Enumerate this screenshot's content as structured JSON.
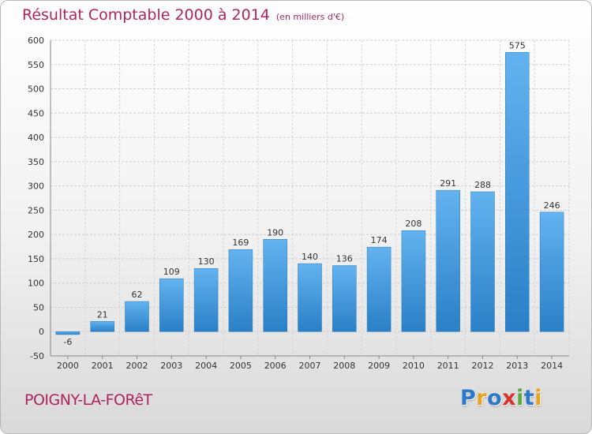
{
  "chart_data": {
    "type": "bar",
    "title": "Résultat Comptable 2000 à 2014",
    "subtitle": "(en milliers d'€)",
    "categories": [
      "2000",
      "2001",
      "2002",
      "2003",
      "2004",
      "2005",
      "2006",
      "2007",
      "2008",
      "2009",
      "2010",
      "2011",
      "2012",
      "2013",
      "2014"
    ],
    "values": [
      -6,
      21,
      62,
      109,
      130,
      169,
      190,
      140,
      136,
      174,
      208,
      291,
      288,
      575,
      246
    ],
    "ylim": [
      -50,
      600
    ],
    "yticks": [
      -50,
      0,
      50,
      100,
      150,
      200,
      250,
      300,
      350,
      400,
      450,
      500,
      550,
      600
    ],
    "grid": true,
    "bar_color": "#3a8fd6"
  },
  "footer": {
    "place": "POIGNY-LA-FORêT",
    "logo": [
      {
        "ch": "P",
        "color": "#2d78c8"
      },
      {
        "ch": "r",
        "color": "#e8a21c"
      },
      {
        "ch": "o",
        "color": "#2d78c8"
      },
      {
        "ch": "x",
        "color": "#d8342c"
      },
      {
        "ch": "i",
        "color": "#5aa83c"
      },
      {
        "ch": "t",
        "color": "#2d78c8"
      },
      {
        "ch": "i",
        "color": "#e8a21c"
      }
    ]
  }
}
